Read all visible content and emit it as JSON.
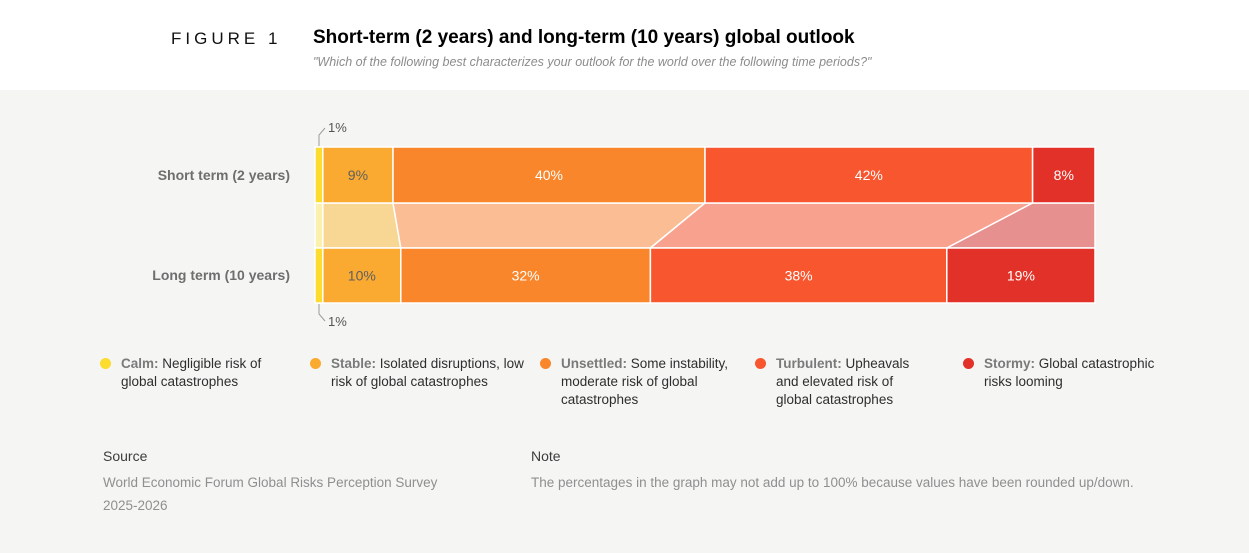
{
  "header": {
    "figure_label": "FIGURE 1",
    "title": "Short-term (2 years) and long-term (10 years) global outlook",
    "subtitle": "\"Which of the following best characterizes your outlook for the world over the following time periods?\""
  },
  "chart_data": {
    "type": "bar",
    "variant": "horizontal-stacked-with-flows",
    "categories": [
      "Calm",
      "Stable",
      "Unsettled",
      "Turbulent",
      "Stormy"
    ],
    "series": [
      {
        "name": "Short term (2 years)",
        "values": [
          1,
          9,
          40,
          42,
          8
        ]
      },
      {
        "name": "Long term (10 years)",
        "values": [
          1,
          10,
          32,
          38,
          19
        ]
      }
    ],
    "value_suffix": "%",
    "xlim": [
      0,
      100
    ],
    "colors": [
      "#FCDC2E",
      "#FAAA31",
      "#F9862B",
      "#F8562F",
      "#E23128"
    ],
    "flow_colors": [
      "#FBF1AE",
      "#F8D795",
      "#FABD94",
      "#F9A18F",
      "#E69190"
    ],
    "value_label_colors": [
      "#5f5f5f",
      "#5f5f5f",
      "#ffffff",
      "#ffffff",
      "#ffffff"
    ],
    "callout_text_color": "#555555",
    "background": "#f5f5f3"
  },
  "legend": {
    "items": [
      {
        "term": "Calm:",
        "description": " Negligible risk of global catastrophes",
        "color": "#FCDC2E"
      },
      {
        "term": "Stable:",
        "description": " Isolated disruptions, low risk of global catastrophes",
        "color": "#FAAA31"
      },
      {
        "term": "Unsettled:",
        "description": " Some instability, moderate risk of global catastrophes",
        "color": "#F9862B"
      },
      {
        "term": "Turbulent:",
        "description": " Upheavals and elevated risk of global catastrophes",
        "color": "#F8562F"
      },
      {
        "term": "Stormy:",
        "description": " Global catastrophic risks looming",
        "color": "#E23128"
      }
    ]
  },
  "footer": {
    "source_label": "Source",
    "source_line1": "World Economic Forum Global Risks Perception Survey",
    "source_line2": "2025-2026",
    "note_label": "Note",
    "note_text": "The percentages in the graph may not add up to 100% because values have been rounded up/down."
  }
}
